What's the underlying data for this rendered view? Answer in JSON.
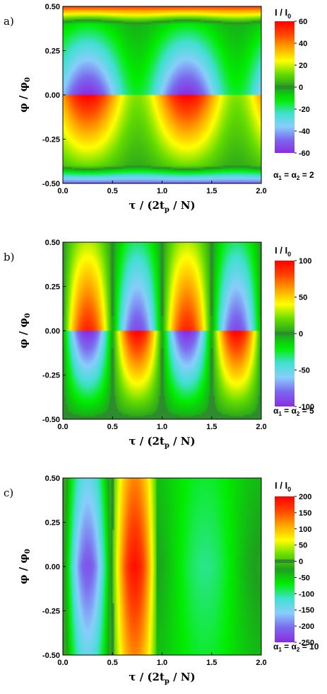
{
  "colors": {
    "colormap": [
      "#8a2be2",
      "#7b68ee",
      "#87cefa",
      "#40e0d0",
      "#00ee00",
      "#1f9f1f",
      "#66dd00",
      "#ffff00",
      "#ffa500",
      "#ff4500",
      "#ff0000"
    ],
    "zero_contour": "#2e8b2e"
  },
  "chart_data": [
    {
      "type": "heatmap",
      "panel_label": "a)",
      "x_label": "τ / (2t",
      "x_label_sub": "p",
      "x_label_tail": " / N)",
      "y_label": "φ / φ",
      "y_label_sub": "0",
      "x_ticks": [
        "0.0",
        "0.5",
        "1.0",
        "1.5",
        "2.0"
      ],
      "y_ticks": [
        "0.50",
        "0.25",
        "0.00",
        "-0.25",
        "-0.50"
      ],
      "xlim": [
        0,
        2
      ],
      "ylim": [
        -0.5,
        0.5
      ],
      "colorbar_title": "I / I",
      "colorbar_title_sub": "0",
      "colorbar_ticks": [
        "60",
        "40",
        "20",
        "0",
        "-20",
        "-40",
        "-60"
      ],
      "zlim": [
        -60,
        60
      ],
      "param_text": "α",
      "param_sub1": "1",
      "param_mid": " = α",
      "param_sub2": "2",
      "param_tail": " = 2",
      "alpha": 2
    },
    {
      "type": "heatmap",
      "panel_label": "b)",
      "x_label": "τ / (2t",
      "x_label_sub": "p",
      "x_label_tail": " / N)",
      "y_label": "φ / φ",
      "y_label_sub": "0",
      "x_ticks": [
        "0.0",
        "0.5",
        "1.0",
        "1.5",
        "2.0"
      ],
      "y_ticks": [
        "0.50",
        "0.25",
        "0.00",
        "-0.25",
        "-0.50"
      ],
      "xlim": [
        0,
        2
      ],
      "ylim": [
        -0.5,
        0.5
      ],
      "colorbar_title": "I / I",
      "colorbar_title_sub": "0",
      "colorbar_ticks": [
        "100",
        "50",
        "0",
        "-50",
        "-100"
      ],
      "zlim": [
        -100,
        100
      ],
      "param_text": "α",
      "param_sub1": "1",
      "param_mid": " = α",
      "param_sub2": "2",
      "param_tail": " = 5",
      "alpha": 5
    },
    {
      "type": "heatmap",
      "panel_label": "c)",
      "x_label": "τ / (2t",
      "x_label_sub": "p",
      "x_label_tail": " / N)",
      "y_label": "φ / φ",
      "y_label_sub": "0",
      "x_ticks": [
        "0.0",
        "0.5",
        "1.0",
        "1.5",
        "2.0"
      ],
      "y_ticks": [
        "0.50",
        "0.25",
        "0.00",
        "-0.25",
        "-0.50"
      ],
      "xlim": [
        0,
        2
      ],
      "ylim": [
        -0.5,
        0.5
      ],
      "colorbar_title": "I / I",
      "colorbar_title_sub": "0",
      "colorbar_ticks": [
        "200",
        "150",
        "100",
        "50",
        "0",
        "-50",
        "-100",
        "-150",
        "-200",
        "-250"
      ],
      "zlim": [
        -250,
        200
      ],
      "param_text": "α",
      "param_sub1": "1",
      "param_mid": " = α",
      "param_sub2": "2",
      "param_tail": " = 10",
      "alpha": 10
    }
  ]
}
